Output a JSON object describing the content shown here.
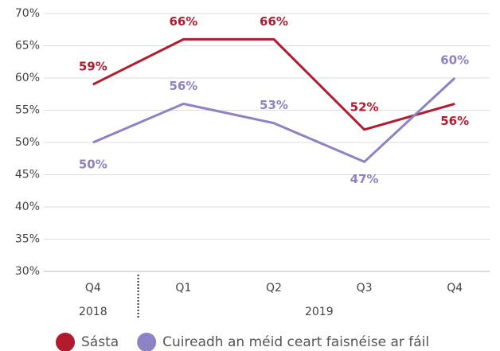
{
  "chart_data": {
    "type": "line",
    "categories": [
      "Q4",
      "Q1",
      "Q2",
      "Q3",
      "Q4"
    ],
    "year_labels": [
      "2018",
      "2019"
    ],
    "series": [
      {
        "name": "Sásta",
        "color": "#b01c2e",
        "values": [
          59,
          66,
          66,
          52,
          56
        ],
        "value_labels": [
          "59%",
          "66%",
          "66%",
          "52%",
          "56%"
        ]
      },
      {
        "name": "Cuireadh an méid ceart faisnéise ar fáil",
        "color": "#8b84c4",
        "values": [
          50,
          56,
          53,
          47,
          60
        ],
        "value_labels": [
          "50%",
          "56%",
          "53%",
          "47%",
          "60%"
        ]
      }
    ],
    "ylim": [
      30,
      70
    ],
    "yticks": [
      {
        "value": 30,
        "label": "30%"
      },
      {
        "value": 35,
        "label": "35%"
      },
      {
        "value": 40,
        "label": "40%"
      },
      {
        "value": 45,
        "label": "45%"
      },
      {
        "value": 50,
        "label": "50%"
      },
      {
        "value": 55,
        "label": "55%"
      },
      {
        "value": 60,
        "label": "60%"
      },
      {
        "value": 65,
        "label": "65%"
      },
      {
        "value": 70,
        "label": "70%"
      }
    ],
    "grid": true
  }
}
